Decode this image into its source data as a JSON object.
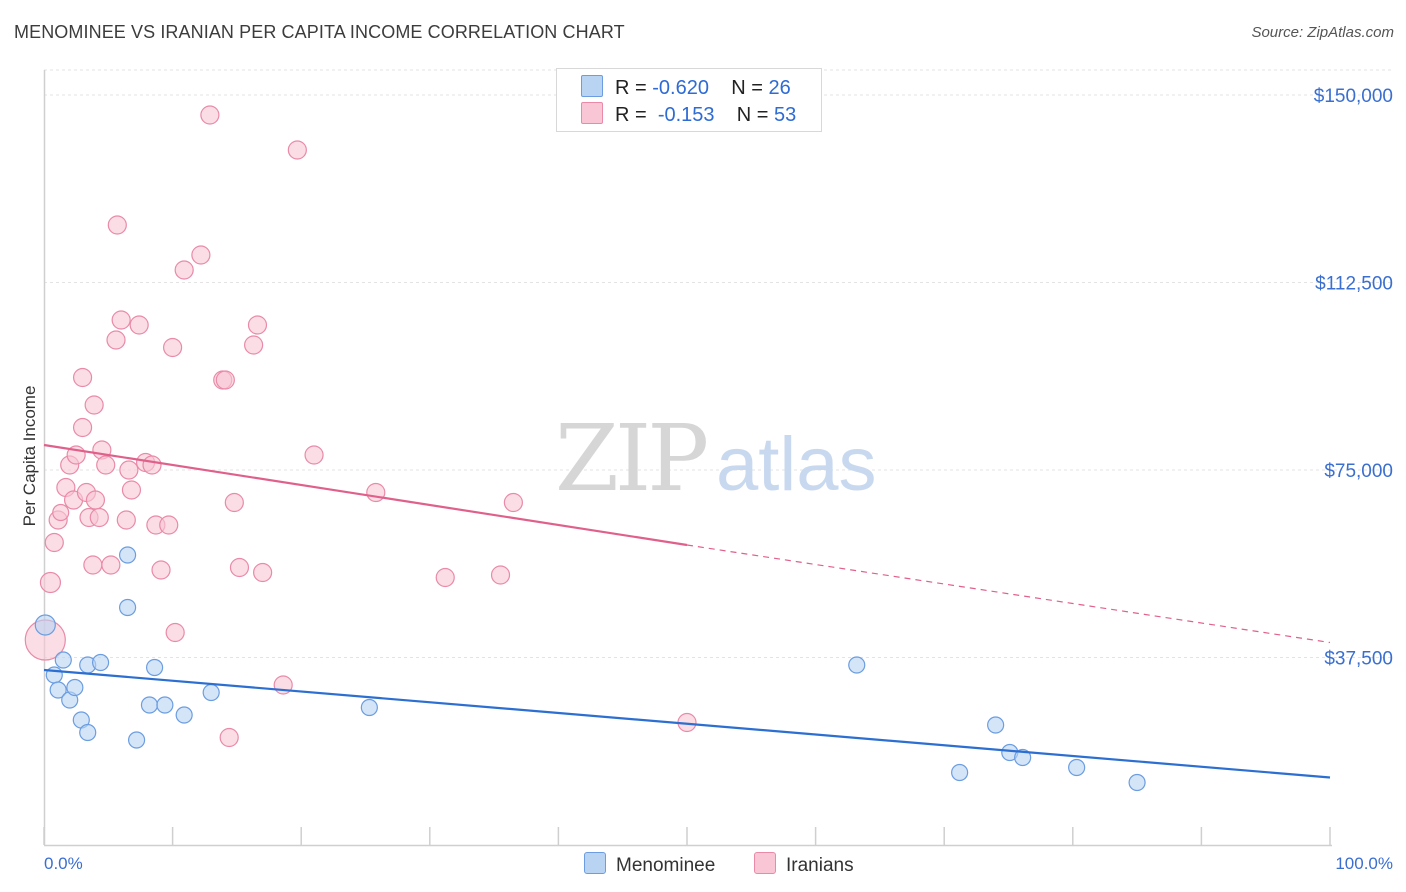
{
  "title": "MENOMINEE VS IRANIAN PER CAPITA INCOME CORRELATION CHART",
  "source": "Source: ZipAtlas.com",
  "watermark": {
    "zip": "ZIP",
    "atlas": "atlas"
  },
  "legend": {
    "menominee": {
      "r_label": "R =",
      "r_value": "-0.620",
      "n_label": "N =",
      "n_value": "26"
    },
    "iranians": {
      "r_label": "R =",
      "r_value": "-0.153",
      "n_label": "N =",
      "n_value": "53"
    }
  },
  "bottom_legend": {
    "menominee": "Menominee",
    "iranians": "Iranians"
  },
  "colors": {
    "menominee_fill": "#b9d3f3",
    "menominee_stroke": "#6b9de0",
    "menominee_line": "#2c6fd1",
    "iranians_fill": "#f8c6d4",
    "iranians_stroke": "#e98aa8",
    "iranians_line": "#e0608c",
    "tick_text": "#3a6fd0"
  },
  "chart_data": {
    "type": "scatter",
    "title": "MENOMINEE VS IRANIAN PER CAPITA INCOME CORRELATION CHART",
    "xlabel": "",
    "ylabel": "Per Capita Income",
    "xlim": [
      0,
      100
    ],
    "ylim": [
      0,
      155000
    ],
    "x_tick_labels": [
      "0.0%",
      "100.0%"
    ],
    "y_ticks": [
      37500,
      75000,
      112500,
      150000
    ],
    "y_tick_labels": [
      "$37,500",
      "$75,000",
      "$112,500",
      "$150,000"
    ],
    "series": [
      {
        "name": "Menominee",
        "r": -0.62,
        "n": 26,
        "trend": {
          "x0": 0,
          "y0": 35000,
          "x1": 100,
          "y1": 13500
        },
        "points": [
          [
            0.1,
            44000,
            10
          ],
          [
            0.8,
            34000,
            8
          ],
          [
            1.1,
            31000,
            8
          ],
          [
            1.5,
            37000,
            8
          ],
          [
            2.0,
            29000,
            8
          ],
          [
            2.4,
            31500,
            8
          ],
          [
            2.9,
            25000,
            8
          ],
          [
            3.4,
            22500,
            8
          ],
          [
            3.4,
            36000,
            8
          ],
          [
            4.4,
            36500,
            8
          ],
          [
            6.5,
            58000,
            8
          ],
          [
            6.5,
            47500,
            8
          ],
          [
            7.2,
            21000,
            8
          ],
          [
            8.2,
            28000,
            8
          ],
          [
            8.6,
            35500,
            8
          ],
          [
            9.4,
            28000,
            8
          ],
          [
            10.9,
            26000,
            8
          ],
          [
            13.0,
            30500,
            8
          ],
          [
            25.3,
            27500,
            8
          ],
          [
            63.2,
            36000,
            8
          ],
          [
            71.2,
            14500,
            8
          ],
          [
            74.0,
            24000,
            8
          ],
          [
            75.1,
            18500,
            8
          ],
          [
            76.1,
            17500,
            8
          ],
          [
            80.3,
            15500,
            8
          ],
          [
            85.0,
            12500,
            8
          ]
        ]
      },
      {
        "name": "Iranians",
        "r": -0.153,
        "n": 53,
        "trend": {
          "x0": 0,
          "y0": 80000,
          "x1": 50,
          "y1": 60000,
          "dash_x1": 100,
          "dash_y1": 40500
        },
        "points": [
          [
            0.1,
            41000,
            20
          ],
          [
            0.5,
            52500,
            10
          ],
          [
            0.8,
            60500,
            9
          ],
          [
            1.1,
            65000,
            9
          ],
          [
            1.3,
            66500,
            8
          ],
          [
            1.7,
            71500,
            9
          ],
          [
            2.0,
            76000,
            9
          ],
          [
            2.3,
            69000,
            9
          ],
          [
            2.5,
            78000,
            9
          ],
          [
            3.0,
            83500,
            9
          ],
          [
            3.0,
            93500,
            9
          ],
          [
            3.3,
            70500,
            9
          ],
          [
            3.8,
            56000,
            9
          ],
          [
            3.5,
            65500,
            9
          ],
          [
            3.9,
            88000,
            9
          ],
          [
            4.0,
            69000,
            9
          ],
          [
            4.3,
            65500,
            9
          ],
          [
            4.5,
            79000,
            9
          ],
          [
            4.8,
            76000,
            9
          ],
          [
            5.2,
            56000,
            9
          ],
          [
            5.6,
            101000,
            9
          ],
          [
            5.7,
            124000,
            9
          ],
          [
            6.0,
            105000,
            9
          ],
          [
            6.4,
            65000,
            9
          ],
          [
            6.6,
            75000,
            9
          ],
          [
            6.8,
            71000,
            9
          ],
          [
            7.4,
            104000,
            9
          ],
          [
            7.9,
            76500,
            9
          ],
          [
            8.4,
            76000,
            9
          ],
          [
            8.7,
            64000,
            9
          ],
          [
            9.1,
            55000,
            9
          ],
          [
            9.7,
            64000,
            9
          ],
          [
            10.0,
            99500,
            9
          ],
          [
            10.2,
            42500,
            9
          ],
          [
            10.9,
            115000,
            9
          ],
          [
            12.2,
            118000,
            9
          ],
          [
            12.9,
            146000,
            9
          ],
          [
            13.9,
            93000,
            9
          ],
          [
            14.1,
            93000,
            9
          ],
          [
            14.4,
            21500,
            9
          ],
          [
            14.8,
            68500,
            9
          ],
          [
            15.2,
            55500,
            9
          ],
          [
            16.3,
            100000,
            9
          ],
          [
            16.6,
            104000,
            9
          ],
          [
            17.0,
            54500,
            9
          ],
          [
            18.6,
            32000,
            9
          ],
          [
            19.7,
            139000,
            9
          ],
          [
            21.0,
            78000,
            9
          ],
          [
            25.8,
            70500,
            9
          ],
          [
            31.2,
            53500,
            9
          ],
          [
            35.5,
            54000,
            9
          ],
          [
            36.5,
            68500,
            9
          ],
          [
            50.0,
            24500,
            9
          ]
        ]
      }
    ]
  }
}
